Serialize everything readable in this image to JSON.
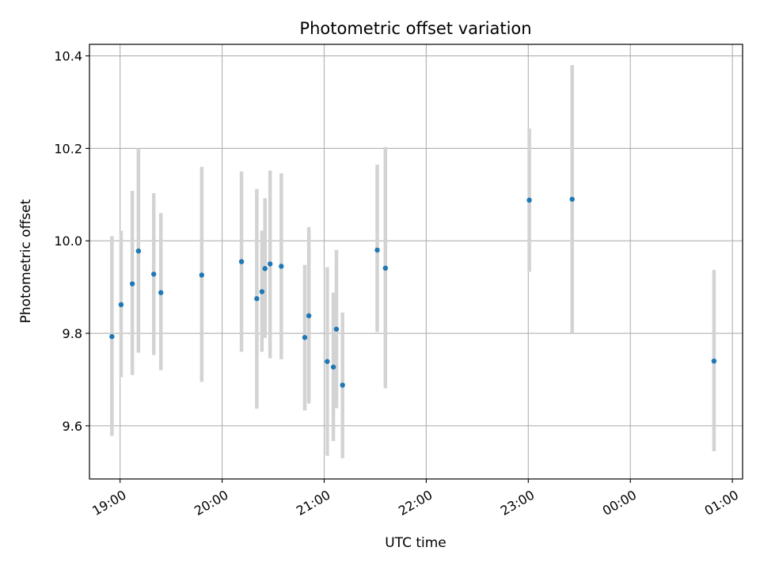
{
  "chart_data": {
    "type": "scatter",
    "title": "Photometric offset variation",
    "xlabel": "UTC time",
    "ylabel": "Photometric offset",
    "x_unit": "hours_utc",
    "xlim": [
      18.7,
      25.1
    ],
    "ylim": [
      9.485,
      10.425
    ],
    "grid": true,
    "x_ticks": [
      {
        "value": 19,
        "label": "19:00"
      },
      {
        "value": 20,
        "label": "20:00"
      },
      {
        "value": 21,
        "label": "21:00"
      },
      {
        "value": 22,
        "label": "22:00"
      },
      {
        "value": 23,
        "label": "23:00"
      },
      {
        "value": 24,
        "label": "00:00"
      },
      {
        "value": 25,
        "label": "01:00"
      }
    ],
    "y_ticks": [
      {
        "value": 9.6,
        "label": "9.6"
      },
      {
        "value": 9.8,
        "label": "9.8"
      },
      {
        "value": 10.0,
        "label": "10.0"
      },
      {
        "value": 10.2,
        "label": "10.2"
      },
      {
        "value": 10.4,
        "label": "10.4"
      }
    ],
    "colors": {
      "point": "#1f77b4",
      "errorbar": "#d3d3d3",
      "grid": "#b0b0b0"
    },
    "points": [
      {
        "x": 18.92,
        "y": 9.793,
        "lo": 9.578,
        "hi": 10.01
      },
      {
        "x": 19.01,
        "y": 9.862,
        "lo": 9.705,
        "hi": 10.022
      },
      {
        "x": 19.12,
        "y": 9.907,
        "lo": 9.71,
        "hi": 10.108
      },
      {
        "x": 19.18,
        "y": 9.978,
        "lo": 9.758,
        "hi": 10.2
      },
      {
        "x": 19.33,
        "y": 9.928,
        "lo": 9.753,
        "hi": 10.103
      },
      {
        "x": 19.4,
        "y": 9.888,
        "lo": 9.72,
        "hi": 10.06
      },
      {
        "x": 19.8,
        "y": 9.926,
        "lo": 9.695,
        "hi": 10.16
      },
      {
        "x": 20.19,
        "y": 9.955,
        "lo": 9.76,
        "hi": 10.15
      },
      {
        "x": 20.34,
        "y": 9.875,
        "lo": 9.637,
        "hi": 10.112
      },
      {
        "x": 20.39,
        "y": 9.89,
        "lo": 9.76,
        "hi": 10.022
      },
      {
        "x": 20.42,
        "y": 9.94,
        "lo": 9.79,
        "hi": 10.092
      },
      {
        "x": 20.47,
        "y": 9.95,
        "lo": 9.746,
        "hi": 10.152
      },
      {
        "x": 20.58,
        "y": 9.945,
        "lo": 9.744,
        "hi": 10.146
      },
      {
        "x": 20.81,
        "y": 9.791,
        "lo": 9.633,
        "hi": 9.948
      },
      {
        "x": 20.85,
        "y": 9.838,
        "lo": 9.648,
        "hi": 10.03
      },
      {
        "x": 21.03,
        "y": 9.739,
        "lo": 9.535,
        "hi": 9.943
      },
      {
        "x": 21.09,
        "y": 9.727,
        "lo": 9.567,
        "hi": 9.888
      },
      {
        "x": 21.12,
        "y": 9.809,
        "lo": 9.638,
        "hi": 9.98
      },
      {
        "x": 21.18,
        "y": 9.688,
        "lo": 9.53,
        "hi": 9.845
      },
      {
        "x": 21.52,
        "y": 9.98,
        "lo": 9.803,
        "hi": 10.165
      },
      {
        "x": 21.6,
        "y": 9.941,
        "lo": 9.681,
        "hi": 10.203
      },
      {
        "x": 23.01,
        "y": 10.088,
        "lo": 9.933,
        "hi": 10.243
      },
      {
        "x": 23.43,
        "y": 10.09,
        "lo": 9.8,
        "hi": 10.38
      },
      {
        "x": 24.82,
        "y": 9.74,
        "lo": 9.545,
        "hi": 9.937
      }
    ]
  }
}
